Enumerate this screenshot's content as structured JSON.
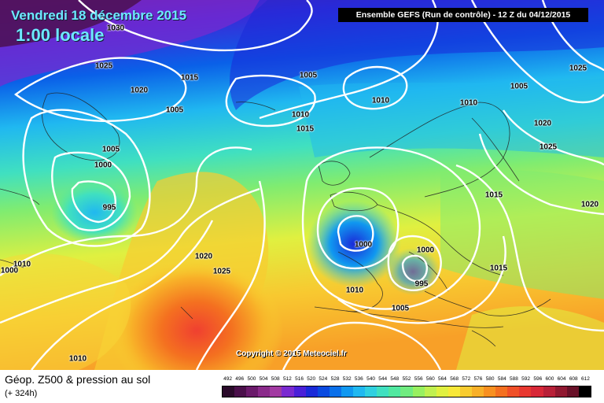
{
  "header": {
    "date": "Vendredi 18 décembre 2015",
    "local_time": "1:00 locale",
    "run_info": "Ensemble GEFS  (Run de contrôle)  - 12 Z du 04/12/2015"
  },
  "map": {
    "copyright": "Copyright © 2015 Meteociel.fr",
    "isobar_labels": [
      "1030",
      "1025",
      "1020",
      "1015",
      "1005",
      "1010",
      "1005",
      "1010",
      "1015",
      "1005",
      "1000",
      "995",
      "1020",
      "1025",
      "1000",
      "1010",
      "1010",
      "1000",
      "995",
      "1010",
      "1005",
      "1015",
      "1015",
      "1020",
      "1025",
      "1020",
      "1025",
      "1010",
      "1005",
      "1000"
    ]
  },
  "footer": {
    "title": "Géop. Z500 & pression au sol",
    "forecast_hour": "(+ 324h)"
  },
  "legend": {
    "unit_labels": [
      "492",
      "496",
      "500",
      "504",
      "508",
      "512",
      "516",
      "520",
      "524",
      "528",
      "532",
      "536",
      "540",
      "544",
      "548",
      "552",
      "556",
      "560",
      "564",
      "568",
      "572",
      "576",
      "580",
      "584",
      "588",
      "592",
      "596",
      "600",
      "604",
      "608",
      "612"
    ],
    "colors": [
      "#2a0a2a",
      "#4a0f4a",
      "#6a1a6a",
      "#8a2a8a",
      "#a23aa2",
      "#7a2ad0",
      "#4a20d8",
      "#1a2ad8",
      "#0a4ae0",
      "#0a70ea",
      "#1098f0",
      "#20b8f0",
      "#30d0e0",
      "#40e0c0",
      "#50e8a0",
      "#70ec80",
      "#98f060",
      "#c0f050",
      "#e0f040",
      "#f8e838",
      "#f8cc30",
      "#f8b028",
      "#f89020",
      "#f47020",
      "#f05028",
      "#e83830",
      "#d82838",
      "#b82038",
      "#901830",
      "#681028",
      "#000000"
    ]
  }
}
